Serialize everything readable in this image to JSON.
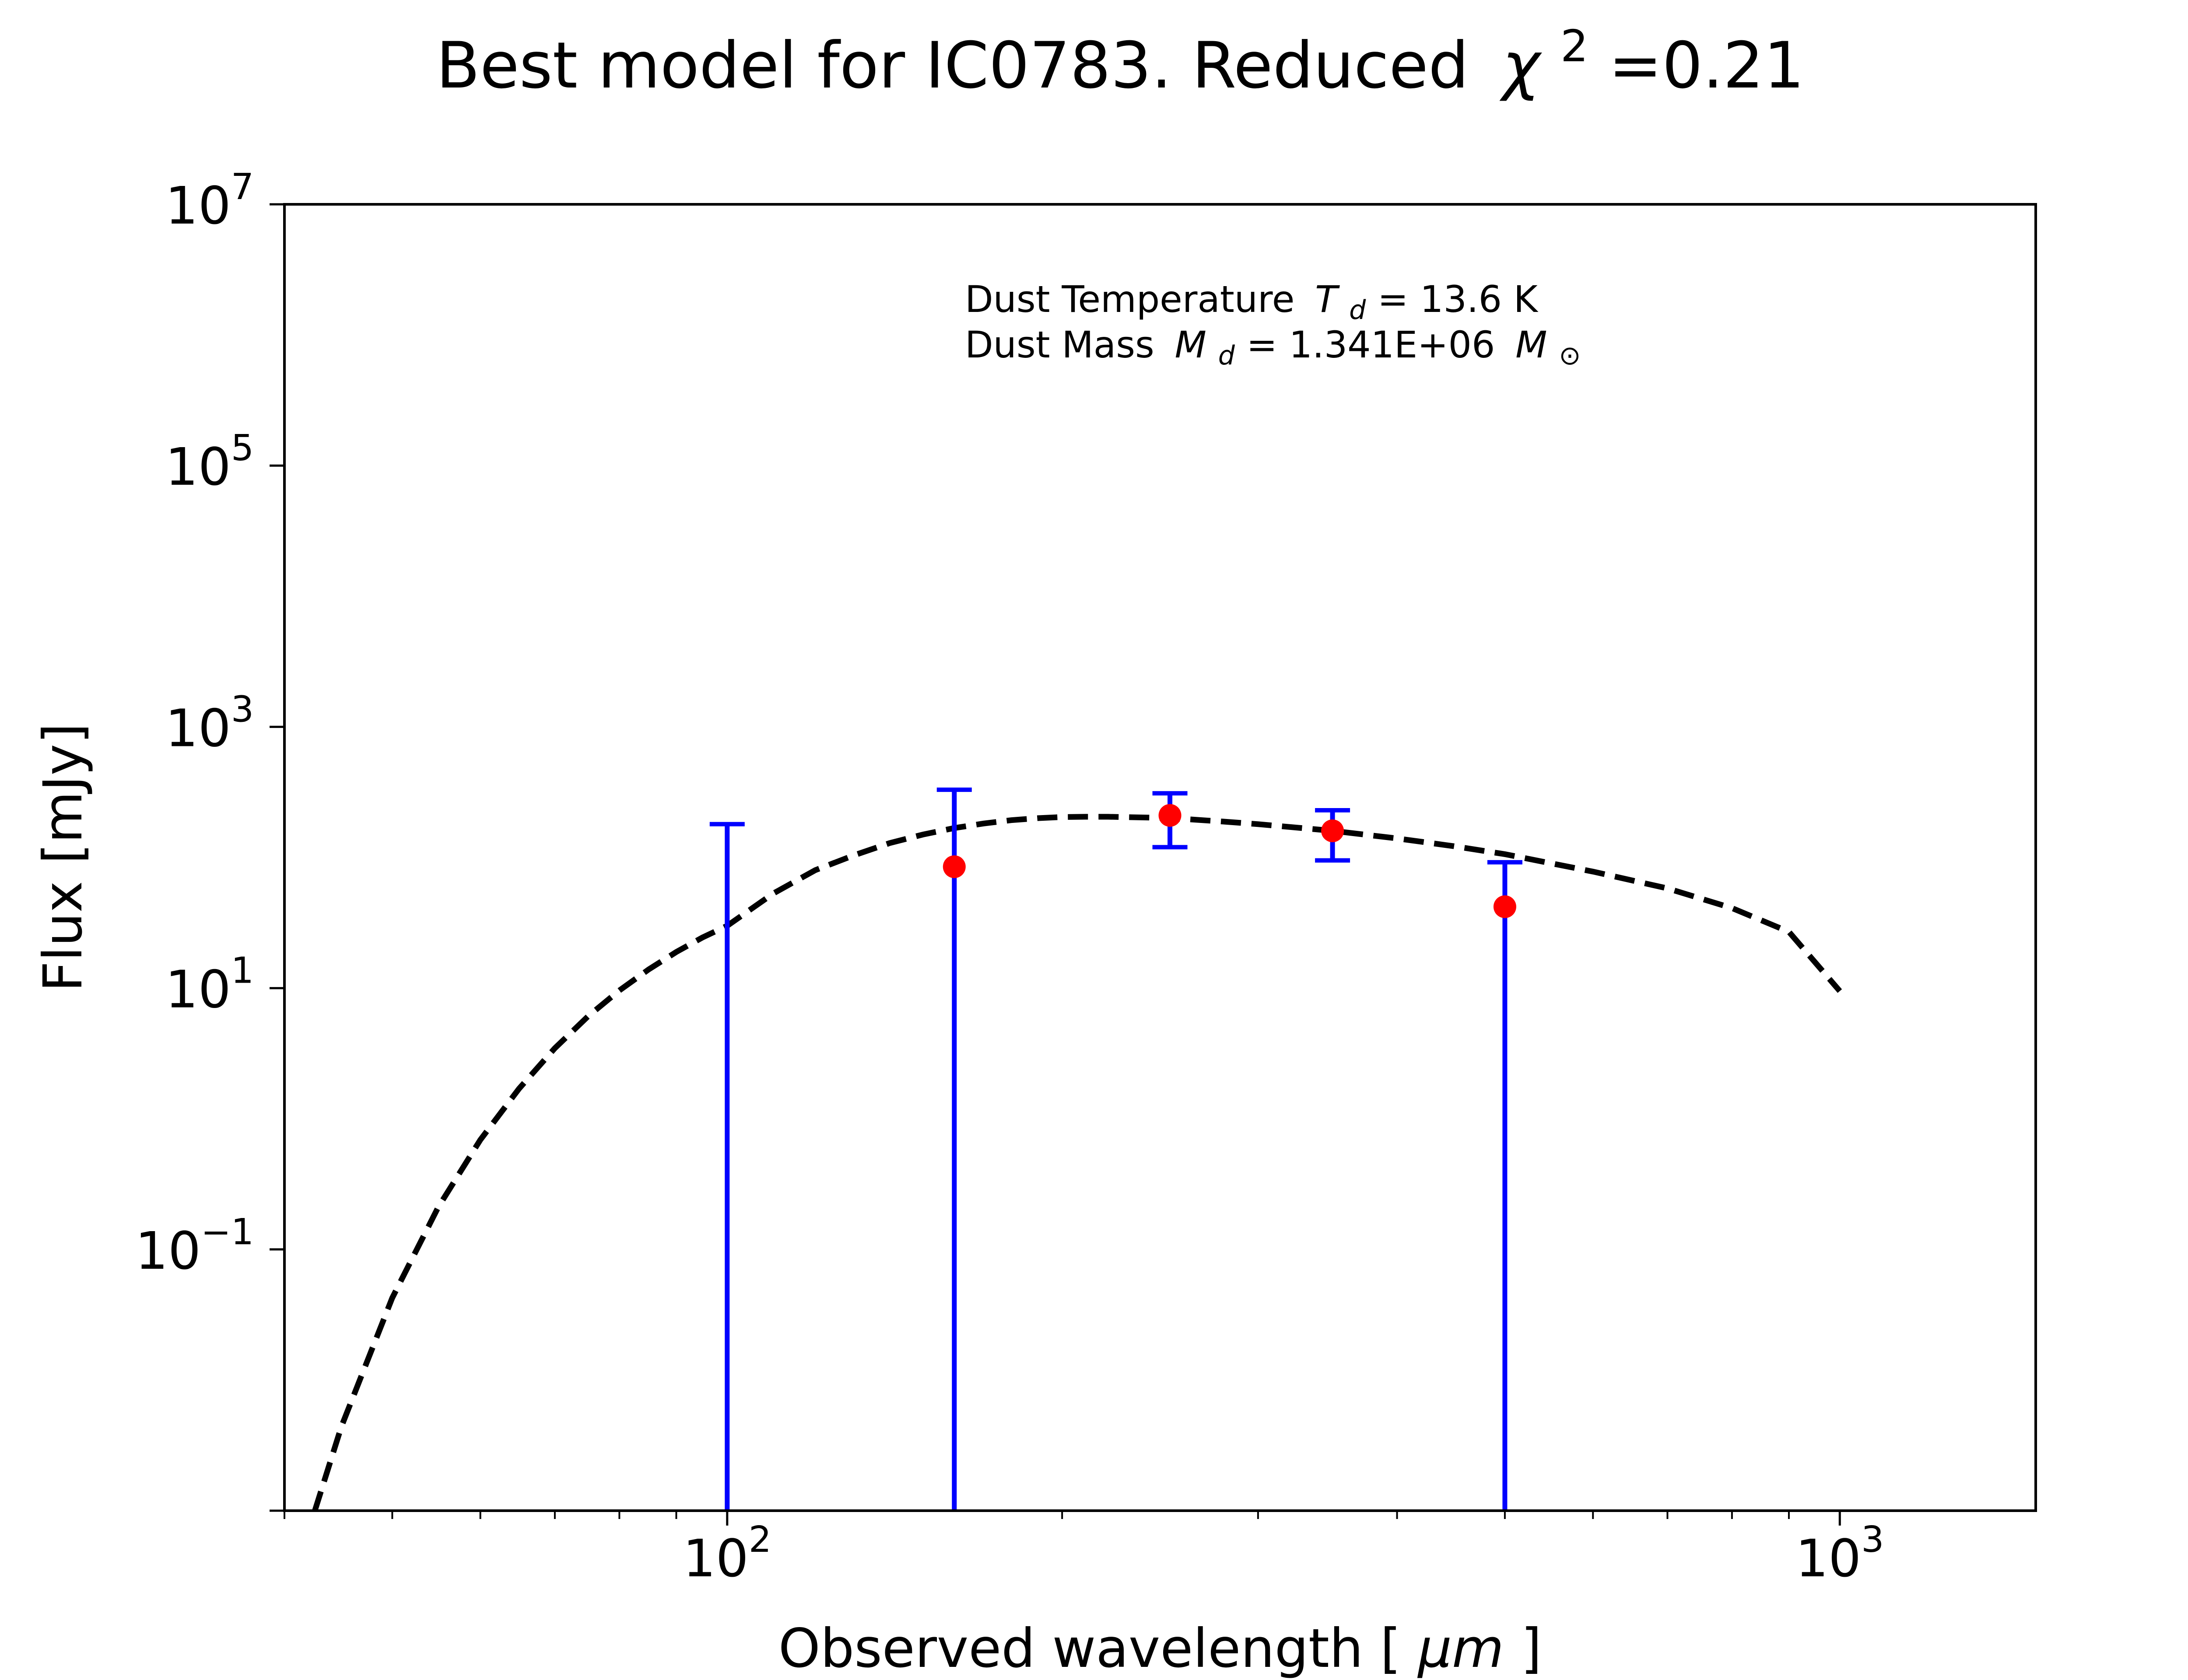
{
  "chart_data": {
    "type": "scatter",
    "title": "Best model for IC0783. Reduced",
    "title_chi_symbol": "χ",
    "title_chi_exp": "2",
    "title_chi_value": "=0.21",
    "xlabel": "Observed wavelength [",
    "xlabel_unit": "μm",
    "xlabel_close": "]",
    "ylabel": "Flux [mJy]",
    "xscale": "log",
    "yscale": "log",
    "xlim": [
      40,
      1500
    ],
    "ylim": [
      0.001,
      10000000
    ],
    "x_ticks": [
      {
        "value": 100,
        "base": "10",
        "exp": "2"
      },
      {
        "value": 1000,
        "base": "10",
        "exp": "3"
      }
    ],
    "y_ticks": [
      {
        "value": 0.1,
        "base": "10",
        "exp": "−1"
      },
      {
        "value": 10,
        "base": "10",
        "exp": "1"
      },
      {
        "value": 1000,
        "base": "10",
        "exp": "3"
      },
      {
        "value": 100000,
        "base": "10",
        "exp": "5"
      },
      {
        "value": 10000000,
        "base": "10",
        "exp": "7"
      }
    ],
    "grid": false,
    "annotation_lines": [
      {
        "label": "Dust Temperature",
        "sym": "T",
        "sub": "d",
        "value": " = 13.6 K"
      },
      {
        "label": "Dust Mass",
        "sym": "M",
        "sub": "d",
        "value": " = 1.341E+06",
        "unit_sym": "M",
        "unit_sub": "⊙"
      }
    ],
    "series": [
      {
        "kind": "errorbar",
        "color": "#0000ff",
        "marker_color": "#ff0000",
        "points": [
          {
            "x": 100,
            "y": null,
            "y_low": 0.001,
            "y_high": 180
          },
          {
            "x": 160,
            "y": 85,
            "y_low": 0.001,
            "y_high": 330
          },
          {
            "x": 250,
            "y": 210,
            "y_low": 120,
            "y_high": 310
          },
          {
            "x": 350,
            "y": 160,
            "y_low": 95,
            "y_high": 230
          },
          {
            "x": 500,
            "y": 42,
            "y_low": 0.001,
            "y_high": 92
          }
        ]
      },
      {
        "kind": "model",
        "style": "dashed",
        "color": "#000000",
        "model_curve": {
          "x": [
            42.6,
            45,
            50,
            55,
            60,
            65,
            70,
            75,
            80,
            85,
            90,
            95,
            100,
            110,
            120,
            130,
            140,
            150,
            160,
            170,
            180,
            190,
            200,
            210,
            220,
            240,
            260,
            280,
            300,
            350,
            400,
            450,
            500,
            600,
            700,
            800,
            900,
            1000
          ],
          "y": [
            0.001,
            0.0044,
            0.0426,
            0.211,
            0.69,
            1.7,
            3.47,
            6.1,
            9.6,
            13.9,
            18.9,
            24.4,
            30,
            53,
            80,
            104,
            129,
            150,
            168,
            182,
            193,
            200,
            204,
            205,
            205,
            202,
            196,
            188,
            180,
            160,
            140,
            122,
            106,
            78,
            58,
            41,
            27,
            9.5
          ]
        }
      }
    ]
  }
}
